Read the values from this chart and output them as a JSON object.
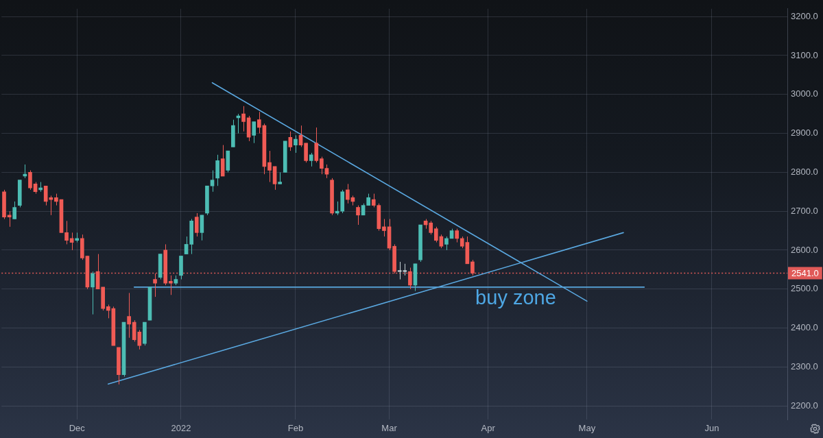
{
  "chart_data": {
    "type": "candlestick",
    "categories": [
      null,
      null,
      null,
      null,
      null,
      null,
      null,
      null,
      null,
      null,
      null,
      null,
      null,
      null,
      "Dec",
      null,
      null,
      null,
      null,
      null,
      null,
      null,
      null,
      null,
      null,
      null,
      null,
      null,
      null,
      null,
      null,
      null,
      null,
      null,
      "2022",
      null,
      null,
      null,
      null,
      null,
      null,
      null,
      null,
      null,
      null,
      null,
      null,
      null,
      null,
      null,
      null,
      null,
      null,
      null,
      null,
      null,
      "Feb",
      null,
      null,
      null,
      null,
      null,
      null,
      null,
      null,
      null,
      null,
      null,
      null,
      null,
      null,
      null,
      null,
      null,
      "Mar",
      null,
      null,
      null,
      null,
      null,
      null,
      null,
      null,
      null,
      null,
      null,
      null,
      null,
      null,
      null,
      null,
      null,
      null,
      "Apr",
      null,
      null,
      null,
      null,
      null,
      null,
      null,
      null,
      null,
      null,
      null,
      null,
      null,
      null,
      null,
      null,
      null,
      null,
      "May",
      null,
      null,
      null,
      null,
      null,
      null,
      null,
      null,
      null,
      null,
      null,
      null,
      null,
      null,
      null,
      null,
      null,
      null,
      null,
      null,
      null,
      null,
      null,
      "Jun",
      null,
      null,
      null,
      null,
      null,
      null,
      null,
      null,
      null,
      null,
      null,
      null,
      null,
      null
    ],
    "series": [
      {
        "type": "candlestick",
        "ohlc": [
          [
            2750,
            2755,
            2680,
            2685
          ],
          [
            2690,
            2700,
            2660,
            2685
          ],
          [
            2680,
            2725,
            2680,
            2710
          ],
          [
            2715,
            2780,
            2710,
            2780
          ],
          [
            2790,
            2820,
            2785,
            2795
          ],
          [
            2800,
            2805,
            2755,
            2760
          ],
          [
            2770,
            2775,
            2745,
            2750
          ],
          [
            2755,
            2775,
            2750,
            2760
          ],
          [
            2765,
            2765,
            2715,
            2725
          ],
          [
            2735,
            2740,
            2690,
            2730
          ],
          [
            2735,
            2745,
            2715,
            2725
          ],
          [
            2730,
            2730,
            2645,
            2645
          ],
          [
            2645,
            2675,
            2615,
            2625
          ],
          [
            2630,
            2645,
            2600,
            2620
          ],
          [
            2625,
            2645,
            2620,
            2630
          ],
          [
            2630,
            2640,
            2575,
            2580
          ],
          [
            2585,
            2585,
            2500,
            2505
          ],
          [
            2505,
            2545,
            2435,
            2540
          ],
          [
            2545,
            2590,
            2500,
            2500
          ],
          [
            2505,
            2505,
            2445,
            2450
          ],
          [
            2455,
            2460,
            2425,
            2445
          ],
          [
            2450,
            2455,
            2355,
            2355
          ],
          [
            2350,
            2350,
            2255,
            2280
          ],
          [
            2280,
            2415,
            2275,
            2415
          ],
          [
            2430,
            2490,
            2375,
            2410
          ],
          [
            2415,
            2420,
            2365,
            2370
          ],
          [
            2390,
            2395,
            2345,
            2355
          ],
          [
            2360,
            2415,
            2355,
            2415
          ],
          [
            2420,
            2505,
            2420,
            2505
          ],
          [
            2525,
            2540,
            2480,
            2515
          ],
          [
            2530,
            2590,
            2525,
            2590
          ],
          [
            2600,
            2615,
            2510,
            2515
          ],
          [
            2520,
            2535,
            2485,
            2515
          ],
          [
            2515,
            2535,
            2510,
            2525
          ],
          [
            2535,
            2585,
            2525,
            2585
          ],
          [
            2590,
            2635,
            2590,
            2615
          ],
          [
            2615,
            2680,
            2590,
            2675
          ],
          [
            2685,
            2695,
            2635,
            2645
          ],
          [
            2645,
            2690,
            2625,
            2690
          ],
          [
            2695,
            2765,
            2690,
            2765
          ],
          [
            2765,
            2805,
            2750,
            2780
          ],
          [
            2785,
            2845,
            2765,
            2830
          ],
          [
            2835,
            2870,
            2790,
            2790
          ],
          [
            2805,
            2855,
            2800,
            2855
          ],
          [
            2865,
            2935,
            2865,
            2920
          ],
          [
            2940,
            2950,
            2900,
            2945
          ],
          [
            2950,
            2970,
            2905,
            2930
          ],
          [
            2940,
            2945,
            2880,
            2890
          ],
          [
            2895,
            2930,
            2875,
            2930
          ],
          [
            2935,
            2955,
            2900,
            2915
          ],
          [
            2920,
            2925,
            2795,
            2815
          ],
          [
            2825,
            2855,
            2775,
            2805
          ],
          [
            2815,
            2815,
            2755,
            2770
          ],
          [
            2770,
            2800,
            2770,
            2775
          ],
          [
            2800,
            2880,
            2800,
            2880
          ],
          [
            2890,
            2905,
            2855,
            2865
          ],
          [
            2870,
            2895,
            2850,
            2885
          ],
          [
            2895,
            2920,
            2865,
            2870
          ],
          [
            2875,
            2875,
            2825,
            2830
          ],
          [
            2830,
            2850,
            2815,
            2845
          ],
          [
            2875,
            2915,
            2825,
            2830
          ],
          [
            2835,
            2840,
            2795,
            2810
          ],
          [
            2810,
            2820,
            2785,
            2795
          ],
          [
            2780,
            2785,
            2690,
            2695
          ],
          [
            2695,
            2725,
            2690,
            2700
          ],
          [
            2700,
            2755,
            2695,
            2750
          ],
          [
            2755,
            2770,
            2720,
            2730
          ],
          [
            2735,
            2740,
            2715,
            2725
          ],
          [
            2710,
            2715,
            2665,
            2690
          ],
          [
            2690,
            2720,
            2690,
            2715
          ],
          [
            2715,
            2745,
            2715,
            2735
          ],
          [
            2730,
            2745,
            2710,
            2715
          ],
          [
            2715,
            2720,
            2650,
            2655
          ],
          [
            2660,
            2680,
            2635,
            2650
          ],
          [
            2660,
            2680,
            2600,
            2605
          ],
          [
            2610,
            2615,
            2540,
            2545
          ],
          [
            2545,
            2570,
            2525,
            2545
          ],
          [
            2545,
            2565,
            2535,
            2545
          ],
          [
            2545,
            2555,
            2500,
            2510
          ],
          [
            2510,
            2565,
            2495,
            2565
          ],
          [
            2575,
            2665,
            2570,
            2665
          ],
          [
            2675,
            2680,
            2655,
            2665
          ],
          [
            2670,
            2675,
            2640,
            2645
          ],
          [
            2655,
            2660,
            2620,
            2625
          ],
          [
            2635,
            2640,
            2605,
            2610
          ],
          [
            2615,
            2635,
            2600,
            2630
          ],
          [
            2630,
            2655,
            2630,
            2650
          ],
          [
            2650,
            2655,
            2620,
            2630
          ],
          [
            2630,
            2635,
            2605,
            2610
          ],
          [
            2620,
            2635,
            2565,
            2565
          ],
          [
            2570,
            2575,
            2535,
            2541
          ],
          null,
          null,
          null,
          null,
          null,
          null,
          null,
          null,
          null,
          null,
          null,
          null,
          null,
          null,
          null,
          null,
          null,
          null,
          null,
          null,
          null,
          null,
          null,
          null,
          null,
          null,
          null,
          null,
          null,
          null,
          null,
          null,
          null,
          null,
          null,
          null,
          null,
          null,
          null,
          null,
          null,
          null,
          null,
          null,
          null,
          null,
          null,
          null,
          null,
          null,
          null,
          null,
          null,
          null,
          null,
          null,
          null,
          null,
          null,
          null
        ],
        "colors": [
          "#f05b55",
          "#f05b55",
          "#4dbdb4",
          "#4dbdb4",
          "#4dbdb4",
          "#f05b55",
          "#f05b55",
          "#4dbdb4",
          "#f05b55",
          "#f05b55",
          "#f05b55",
          "#f05b55",
          "#f05b55",
          "#f05b55",
          "#4dbdb4",
          "#f05b55",
          "#f05b55",
          "#4dbdb4",
          "#f05b55",
          "#f05b55",
          "#f05b55",
          "#f05b55",
          "#f05b55",
          "#4dbdb4",
          "#f05b55",
          "#f05b55",
          "#f05b55",
          "#4dbdb4",
          "#4dbdb4",
          "#f05b55",
          "#4dbdb4",
          "#f05b55",
          "#f05b55",
          "#4dbdb4",
          "#4dbdb4",
          "#4dbdb4",
          "#4dbdb4",
          "#f05b55",
          "#4dbdb4",
          "#4dbdb4",
          "#4dbdb4",
          "#4dbdb4",
          "#f05b55",
          "#4dbdb4",
          "#4dbdb4",
          "#4dbdb4",
          "#f05b55",
          "#f05b55",
          "#4dbdb4",
          "#f05b55",
          "#f05b55",
          "#f05b55",
          "#f05b55",
          "#4dbdb4",
          "#4dbdb4",
          "#f05b55",
          "#4dbdb4",
          "#f05b55",
          "#f05b55",
          "#4dbdb4",
          "#f05b55",
          "#f05b55",
          "#f05b55",
          "#f05b55",
          "#4dbdb4",
          "#4dbdb4",
          "#f05b55",
          "#f05b55",
          "#f05b55",
          "#4dbdb4",
          "#4dbdb4",
          "#f05b55",
          "#f05b55",
          "#f05b55",
          "#f05b55",
          "#f05b55",
          "#c7d2d6",
          "#c7d2d6",
          "#f05b55",
          "#4dbdb4",
          "#4dbdb4",
          "#f05b55",
          "#f05b55",
          "#f05b55",
          "#f05b55",
          "#4dbdb4",
          "#4dbdb4",
          "#f05b55",
          "#f05b55",
          "#f05b55",
          "#f05b55",
          null,
          null,
          null,
          null,
          null,
          null,
          null,
          null,
          null,
          null,
          null,
          null,
          null,
          null,
          null,
          null,
          null,
          null,
          null,
          null,
          null,
          null,
          null,
          null,
          null,
          null,
          null,
          null,
          null,
          null,
          null,
          null,
          null,
          null,
          null,
          null,
          null,
          null,
          null,
          null,
          null,
          null,
          null,
          null,
          null,
          null,
          null,
          null,
          null,
          null,
          null,
          null,
          null,
          null,
          null,
          null,
          null,
          null,
          null,
          null
        ]
      },
      {
        "type": "line",
        "color": "#5aa8e0",
        "values": [
          null,
          null,
          null,
          null,
          null,
          null,
          null,
          null,
          null,
          null,
          null,
          null,
          null,
          null,
          null,
          null,
          null,
          null,
          null,
          null,
          null,
          null,
          null,
          null,
          null,
          null,
          null,
          null,
          null,
          null,
          null,
          null,
          null,
          null,
          null,
          null,
          null,
          null,
          null,
          null,
          3030,
          null,
          null,
          null,
          null,
          null,
          null,
          null,
          null,
          null,
          null,
          null,
          null,
          null,
          null,
          null,
          null,
          null,
          null,
          null,
          null,
          null,
          null,
          null,
          null,
          null,
          null,
          null,
          null,
          null,
          null,
          null,
          null,
          null,
          null,
          null,
          null,
          null,
          null,
          null,
          null,
          null,
          null,
          null,
          null,
          null,
          null,
          null,
          null,
          null,
          null,
          null,
          null,
          null,
          null,
          null,
          null,
          null,
          null,
          null,
          null,
          null,
          null,
          null,
          null,
          null,
          null,
          null,
          null,
          null,
          null,
          null,
          2469,
          null,
          null,
          null,
          null,
          null,
          null,
          null,
          null,
          null,
          null,
          null,
          null,
          null,
          null,
          null,
          null,
          null,
          null,
          null,
          null,
          null,
          null,
          null,
          null,
          null,
          null,
          null,
          null,
          null,
          null,
          null,
          null,
          null,
          null,
          null,
          null,
          null,
          null
        ]
      },
      {
        "type": "line",
        "color": "#5aa8e0",
        "values": [
          null,
          null,
          null,
          null,
          null,
          null,
          null,
          null,
          null,
          null,
          null,
          null,
          null,
          null,
          null,
          null,
          null,
          null,
          null,
          null,
          2256,
          null,
          null,
          null,
          null,
          null,
          null,
          null,
          null,
          null,
          null,
          null,
          null,
          null,
          null,
          null,
          null,
          null,
          null,
          null,
          null,
          null,
          null,
          null,
          null,
          null,
          null,
          null,
          null,
          null,
          null,
          null,
          null,
          null,
          null,
          null,
          null,
          null,
          null,
          null,
          null,
          null,
          null,
          null,
          null,
          null,
          null,
          null,
          null,
          null,
          null,
          null,
          null,
          null,
          null,
          null,
          null,
          null,
          null,
          null,
          null,
          null,
          null,
          null,
          null,
          null,
          null,
          null,
          null,
          null,
          null,
          null,
          null,
          null,
          null,
          null,
          null,
          null,
          null,
          null,
          null,
          null,
          null,
          null,
          null,
          null,
          null,
          null,
          null,
          null,
          null,
          null,
          null,
          null,
          null,
          null,
          null,
          null,
          null,
          2645,
          null,
          null,
          null,
          null,
          null,
          null,
          null,
          null,
          null,
          null,
          null,
          null,
          null,
          null,
          null,
          null,
          null,
          null,
          null,
          null,
          null,
          null,
          null,
          null,
          null,
          null,
          null,
          null,
          null,
          null,
          null
        ]
      },
      {
        "type": "line",
        "color": "#5aa8e0",
        "values": [
          null,
          null,
          null,
          null,
          null,
          null,
          null,
          null,
          null,
          null,
          null,
          null,
          null,
          null,
          null,
          null,
          null,
          null,
          null,
          null,
          null,
          null,
          null,
          null,
          null,
          2505,
          null,
          null,
          null,
          null,
          null,
          null,
          null,
          null,
          null,
          null,
          null,
          null,
          null,
          null,
          null,
          null,
          null,
          null,
          null,
          null,
          null,
          null,
          null,
          null,
          null,
          null,
          null,
          null,
          null,
          null,
          null,
          null,
          null,
          null,
          null,
          null,
          null,
          null,
          null,
          null,
          null,
          null,
          null,
          null,
          null,
          null,
          null,
          null,
          null,
          null,
          null,
          null,
          null,
          null,
          null,
          null,
          null,
          null,
          null,
          null,
          null,
          null,
          null,
          null,
          null,
          null,
          null,
          null,
          null,
          null,
          null,
          null,
          null,
          null,
          null,
          null,
          null,
          null,
          null,
          null,
          null,
          null,
          null,
          null,
          null,
          null,
          null,
          null,
          null,
          null,
          null,
          null,
          null,
          null,
          null,
          null,
          null,
          2505,
          null,
          null,
          null,
          null,
          null,
          null,
          null,
          null,
          null,
          null,
          null,
          null,
          null,
          null,
          null,
          null,
          null,
          null,
          null,
          null,
          null,
          null,
          null,
          null,
          null,
          null,
          null
        ]
      }
    ],
    "ylim": [
      2165,
      3220
    ],
    "yticks": [
      {
        "value": 2200,
        "label": "2200.0"
      },
      {
        "value": 2300,
        "label": "2300.0"
      },
      {
        "value": 2400,
        "label": "2400.0"
      },
      {
        "value": 2500,
        "label": "2500.0"
      },
      {
        "value": 2600,
        "label": "2600.0"
      },
      {
        "value": 2700,
        "label": "2700.0"
      },
      {
        "value": 2800,
        "label": "2800.0"
      },
      {
        "value": 2900,
        "label": "2900.0"
      },
      {
        "value": 3000,
        "label": "3000.0"
      },
      {
        "value": 3100,
        "label": "3100.0"
      },
      {
        "value": 3200,
        "label": "3200.0"
      }
    ],
    "grid": true,
    "ref_lines": [
      {
        "axis": "y",
        "value": 2541,
        "label": "2541.0",
        "color": "#e05a58",
        "line_style": "dotted"
      }
    ],
    "annotations": [
      {
        "text": "buy zone",
        "y": 2505
      }
    ]
  }
}
